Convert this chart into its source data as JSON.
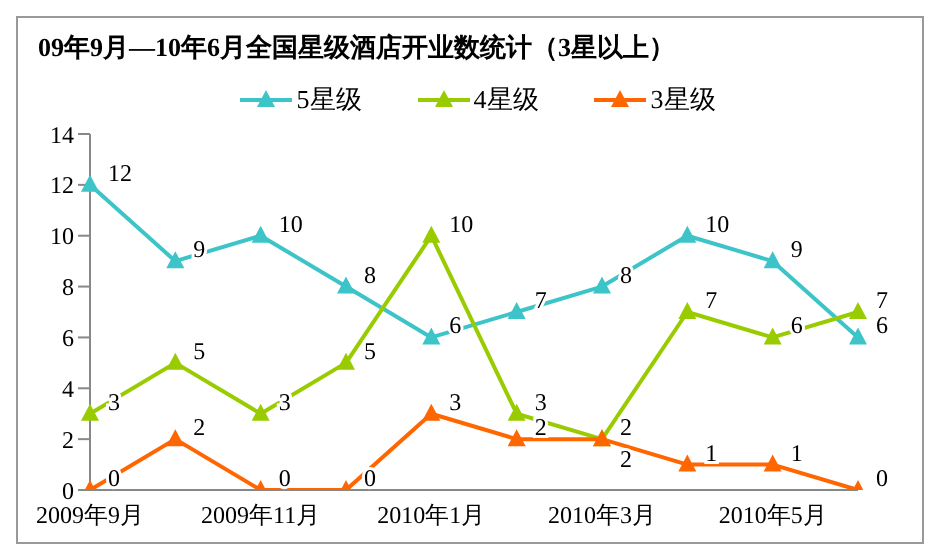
{
  "chart_data": {
    "type": "line",
    "title": "09年9月—10年6月全国星级酒店开业数统计（3星以上）",
    "categories": [
      "2009年9月",
      null,
      "2009年11月",
      null,
      "2010年1月",
      null,
      "2010年3月",
      null,
      "2010年5月",
      null
    ],
    "series": [
      {
        "name": "5星级",
        "color": "#3cc4c8",
        "values": [
          12,
          9,
          10,
          8,
          6,
          7,
          8,
          10,
          9,
          6
        ]
      },
      {
        "name": "4星级",
        "color": "#99cc00",
        "values": [
          3,
          5,
          3,
          5,
          10,
          3,
          2,
          7,
          6,
          7
        ]
      },
      {
        "name": "3星级",
        "color": "#ff6600",
        "values": [
          0,
          2,
          0,
          0,
          3,
          2,
          2,
          1,
          1,
          0
        ]
      }
    ],
    "ylim": [
      0,
      14
    ],
    "yticks": [
      0,
      2,
      4,
      6,
      8,
      10,
      12,
      14
    ],
    "grid": false,
    "legend": "top",
    "marker": "triangle",
    "line_style": "solid",
    "data_labels": true
  }
}
